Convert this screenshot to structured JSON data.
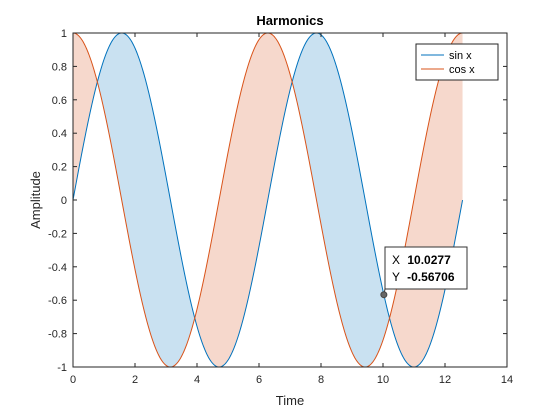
{
  "chart_data": {
    "type": "line",
    "title": "Harmonics",
    "xlabel": "Time",
    "ylabel": "Amplitude",
    "xlim": [
      0,
      14
    ],
    "ylim": [
      -1,
      1
    ],
    "x_ticks": [
      "0",
      "2",
      "4",
      "6",
      "8",
      "10",
      "12",
      "14"
    ],
    "y_ticks": [
      "-1",
      "-0.8",
      "-0.6",
      "-0.4",
      "-0.2",
      "0",
      "0.2",
      "0.4",
      "0.6",
      "0.8",
      "1"
    ],
    "x_range": [
      0,
      12.566
    ],
    "series": [
      {
        "name": "sin x",
        "function": "sin",
        "color": "#0072BD"
      },
      {
        "name": "cos x",
        "function": "cos",
        "color": "#D95319"
      }
    ],
    "fill_colors": {
      "sin_above": "#c9e1f1",
      "cos_above": "#f6d8cc"
    },
    "legend_position": "top-right",
    "grid": false,
    "datatip": {
      "x_label": "X",
      "x_value": "10.0277",
      "y_label": "Y",
      "y_value": "-0.56706",
      "x": 10.0277,
      "y": -0.56706
    }
  }
}
